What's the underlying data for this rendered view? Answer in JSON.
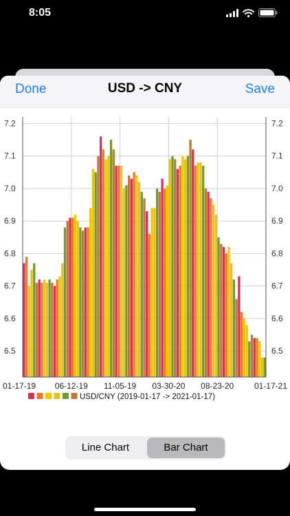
{
  "status": {
    "time": "8:05"
  },
  "nav": {
    "done_label": "Done",
    "title": "USD -> CNY",
    "save_label": "Save"
  },
  "segments": [
    {
      "label": "Line Chart",
      "selected": false
    },
    {
      "label": "Bar Chart",
      "selected": true
    }
  ],
  "colors": {
    "accent": "#1a7ff0",
    "series_palette": [
      "#d92f5a",
      "#f07a1f",
      "#f5c400",
      "#e3c21a",
      "#6f9e2a",
      "#bd7a3a"
    ]
  },
  "chart_data": {
    "type": "bar",
    "legend": "USD/CNY (2019-01-17 -> 2021-01-17)",
    "ylim": [
      6.42,
      7.22
    ],
    "y_ticks": [
      "7.2",
      "7.1",
      "7.0",
      "6.9",
      "6.8",
      "6.7",
      "6.6",
      "6.5"
    ],
    "x_ticks": [
      "01-17-19",
      "06-12-19",
      "11-05-19",
      "03-30-20",
      "08-23-20",
      "01-17-21"
    ],
    "values": [
      6.77,
      6.79,
      6.7,
      6.75,
      6.77,
      6.71,
      6.72,
      6.71,
      6.72,
      6.71,
      6.72,
      6.71,
      6.7,
      6.72,
      6.73,
      6.77,
      6.88,
      6.9,
      6.91,
      6.91,
      6.92,
      6.9,
      6.88,
      6.87,
      6.88,
      6.88,
      6.94,
      7.06,
      7.05,
      7.1,
      7.16,
      7.12,
      7.09,
      7.1,
      7.15,
      7.12,
      7.07,
      7.07,
      7.07,
      7.0,
      7.01,
      7.04,
      7.03,
      7.05,
      7.04,
      7.02,
      6.99,
      6.97,
      6.93,
      6.86,
      6.94,
      6.94,
      7.0,
      6.99,
      7.03,
      7.0,
      7.01,
      7.09,
      7.1,
      7.09,
      7.06,
      7.07,
      7.1,
      7.09,
      7.1,
      7.15,
      7.12,
      7.07,
      7.08,
      7.08,
      7.07,
      7.0,
      6.99,
      6.97,
      6.95,
      6.92,
      6.85,
      6.83,
      6.82,
      6.8,
      6.82,
      6.77,
      6.72,
      6.66,
      6.73,
      6.62,
      6.6,
      6.58,
      6.53,
      6.55,
      6.54,
      6.54,
      6.53,
      6.48,
      6.48
    ]
  }
}
